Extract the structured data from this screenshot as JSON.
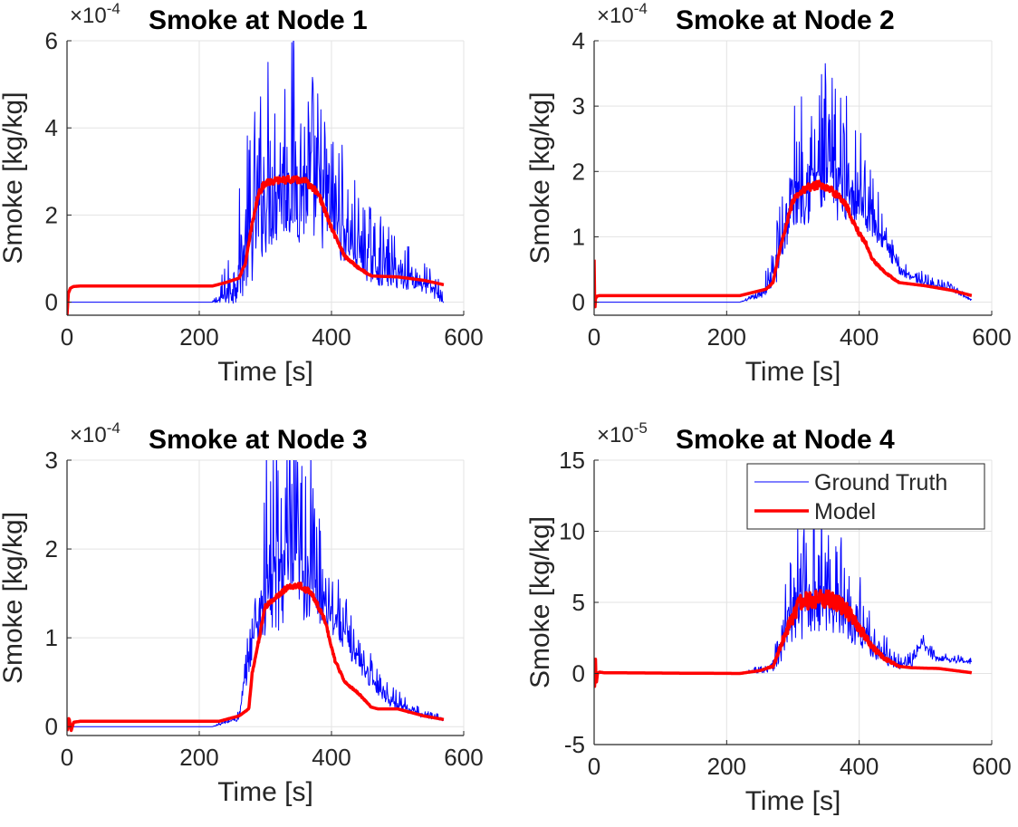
{
  "chart_data": [
    {
      "type": "line",
      "title": "Smoke at Node 1",
      "xlabel": "Time [s]",
      "ylabel": "Smoke [kg/kg]",
      "exponent_base": "×10",
      "exponent_power": "-4",
      "xlim": [
        0,
        600
      ],
      "ylim": [
        -0.3,
        6
      ],
      "xticks": [
        0,
        200,
        400,
        600
      ],
      "yticks": [
        0,
        2,
        4,
        6
      ],
      "grid": true,
      "series": [
        {
          "name": "Ground Truth",
          "color": "#0000ff",
          "style": "noisy",
          "x": [
            0,
            220,
            230,
            250,
            270,
            300,
            330,
            360,
            400,
            440,
            480,
            520,
            560,
            570
          ],
          "y": [
            0.0,
            0.0,
            0.05,
            0.35,
            1.3,
            2.6,
            3.0,
            2.8,
            2.2,
            1.2,
            0.8,
            0.6,
            0.25,
            0.0
          ],
          "amplitude": [
            0,
            0,
            0.25,
            0.6,
            1.4,
            1.9,
            2.1,
            1.9,
            1.3,
            0.8,
            0.6,
            0.4,
            0.25,
            0.05
          ]
        },
        {
          "name": "Model",
          "color": "#ff0000",
          "style": "smooth",
          "x": [
            0,
            2,
            5,
            10,
            20,
            220,
            240,
            260,
            270,
            280,
            290,
            300,
            320,
            340,
            360,
            380,
            400,
            420,
            440,
            460,
            500,
            540,
            570
          ],
          "y": [
            -0.3,
            0.2,
            0.32,
            0.36,
            0.37,
            0.37,
            0.45,
            0.55,
            0.9,
            1.8,
            2.5,
            2.75,
            2.8,
            2.82,
            2.78,
            2.5,
            1.7,
            1.05,
            0.8,
            0.6,
            0.58,
            0.5,
            0.4
          ],
          "jitter": 0.08
        }
      ]
    },
    {
      "type": "line",
      "title": "Smoke at Node 2",
      "xlabel": "Time [s]",
      "ylabel": "Smoke [kg/kg]",
      "exponent_base": "×10",
      "exponent_power": "-4",
      "xlim": [
        0,
        600
      ],
      "ylim": [
        -0.2,
        4
      ],
      "xticks": [
        0,
        200,
        400,
        600
      ],
      "yticks": [
        0,
        1,
        2,
        3,
        4
      ],
      "grid": true,
      "series": [
        {
          "name": "Ground Truth",
          "color": "#0000ff",
          "style": "noisy",
          "x": [
            0,
            220,
            250,
            270,
            290,
            310,
            340,
            370,
            400,
            420,
            440,
            460,
            500,
            540,
            570
          ],
          "y": [
            0.0,
            0.0,
            0.1,
            0.4,
            1.3,
            1.9,
            2.0,
            1.95,
            1.7,
            1.3,
            0.9,
            0.5,
            0.3,
            0.2,
            0.03
          ],
          "amplitude": [
            0,
            0,
            0.05,
            0.3,
            0.7,
            0.9,
            1.0,
            0.9,
            0.6,
            0.4,
            0.2,
            0.1,
            0.08,
            0.05,
            0.02
          ]
        },
        {
          "name": "Model",
          "color": "#ff0000",
          "style": "smooth",
          "x": [
            0,
            1,
            2,
            4,
            8,
            15,
            220,
            240,
            260,
            270,
            280,
            300,
            320,
            340,
            360,
            380,
            390,
            400,
            410,
            420,
            440,
            460,
            500,
            540,
            570
          ],
          "y": [
            0.65,
            -0.15,
            0.05,
            0.09,
            0.1,
            0.1,
            0.1,
            0.15,
            0.2,
            0.3,
            0.8,
            1.55,
            1.75,
            1.8,
            1.7,
            1.5,
            1.25,
            1.05,
            0.9,
            0.65,
            0.45,
            0.3,
            0.25,
            0.18,
            0.1
          ],
          "jitter": 0.09
        }
      ]
    },
    {
      "type": "line",
      "title": "Smoke at Node 3",
      "xlabel": "Time [s]",
      "ylabel": "Smoke [kg/kg]",
      "exponent_base": "×10",
      "exponent_power": "-4",
      "xlim": [
        0,
        600
      ],
      "ylim": [
        -0.1,
        3
      ],
      "xticks": [
        0,
        200,
        400,
        600
      ],
      "yticks": [
        0,
        1,
        2,
        3
      ],
      "grid": true,
      "series": [
        {
          "name": "Ground Truth",
          "color": "#0000ff",
          "style": "noisy",
          "x": [
            0,
            220,
            260,
            280,
            300,
            330,
            360,
            390,
            410,
            430,
            460,
            490,
            530,
            570
          ],
          "y": [
            0.0,
            0.0,
            0.1,
            1.0,
            1.6,
            1.9,
            1.85,
            1.5,
            1.2,
            0.9,
            0.55,
            0.3,
            0.15,
            0.08
          ],
          "amplitude": [
            0,
            0,
            0.05,
            0.3,
            0.9,
            1.0,
            0.9,
            0.5,
            0.3,
            0.2,
            0.15,
            0.1,
            0.05,
            0.02
          ]
        },
        {
          "name": "Model",
          "color": "#ff0000",
          "style": "smooth",
          "x": [
            0,
            3,
            6,
            10,
            20,
            230,
            260,
            275,
            280,
            300,
            330,
            350,
            370,
            390,
            405,
            420,
            440,
            460,
            470,
            500,
            540,
            570
          ],
          "y": [
            -0.05,
            0.1,
            -0.05,
            0.05,
            0.06,
            0.06,
            0.12,
            0.2,
            0.6,
            1.35,
            1.55,
            1.6,
            1.5,
            1.2,
            0.75,
            0.5,
            0.38,
            0.22,
            0.2,
            0.2,
            0.12,
            0.08
          ],
          "jitter": 0.06
        }
      ]
    },
    {
      "type": "line",
      "title": "Smoke at Node 4",
      "xlabel": "Time [s]",
      "ylabel": "Smoke [kg/kg]",
      "exponent_base": "×10",
      "exponent_power": "-5",
      "xlim": [
        0,
        600
      ],
      "ylim": [
        -5,
        15
      ],
      "xticks": [
        0,
        200,
        400,
        600
      ],
      "yticks": [
        -5,
        0,
        5,
        10,
        15
      ],
      "grid": true,
      "legend": {
        "location": "top-right",
        "entries": [
          "Ground Truth",
          "Model"
        ]
      },
      "series": [
        {
          "name": "Ground Truth",
          "color": "#0000ff",
          "style": "noisy",
          "x": [
            0,
            220,
            260,
            280,
            300,
            330,
            360,
            400,
            420,
            440,
            460,
            480,
            495,
            510,
            540,
            570
          ],
          "y": [
            0.0,
            0.0,
            0.3,
            1.5,
            4.5,
            6.0,
            5.5,
            3.5,
            2.0,
            1.2,
            0.6,
            0.8,
            2.2,
            1.2,
            1.0,
            0.8
          ],
          "amplitude": [
            0,
            0,
            0.3,
            1.5,
            3.0,
            4.0,
            3.5,
            2.0,
            1.2,
            0.8,
            0.4,
            0.4,
            0.4,
            0.4,
            0.3,
            0.3
          ]
        },
        {
          "name": "Model",
          "color": "#ff0000",
          "style": "smooth",
          "x": [
            0,
            1,
            2,
            3,
            5,
            8,
            15,
            220,
            250,
            270,
            290,
            310,
            340,
            360,
            380,
            400,
            420,
            440,
            460,
            480,
            520,
            570
          ],
          "y": [
            0.0,
            -1.3,
            1.2,
            -0.8,
            0.0,
            0.1,
            0.05,
            0.0,
            0.2,
            0.5,
            3.0,
            5.0,
            5.3,
            5.2,
            4.5,
            3.2,
            1.8,
            1.0,
            0.5,
            0.4,
            0.35,
            0.05
          ],
          "jitter": 0.35
        }
      ]
    }
  ]
}
